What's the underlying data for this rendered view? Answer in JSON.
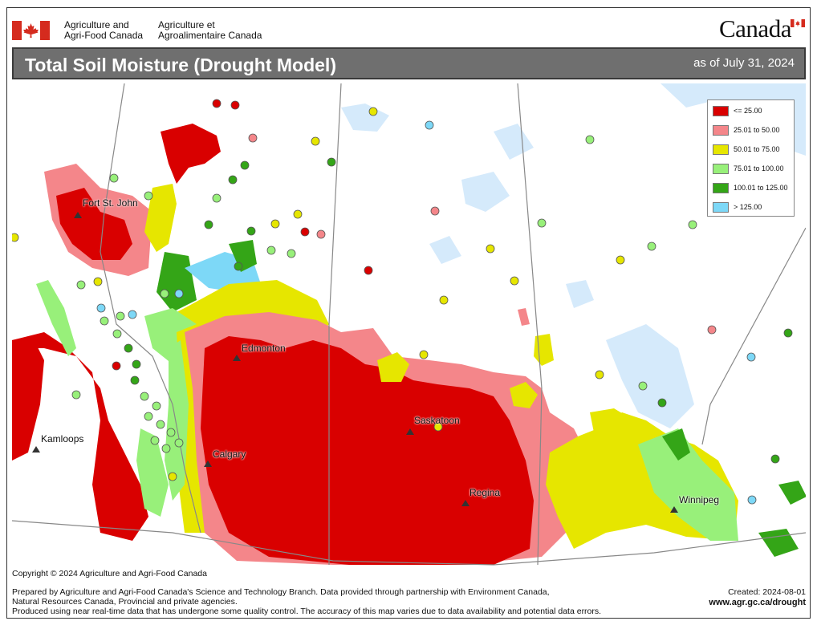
{
  "header": {
    "agency_en_line1": "Agriculture and",
    "agency_en_line2": "Agri-Food Canada",
    "agency_fr_line1": "Agriculture et",
    "agency_fr_line2": "Agroalimentaire Canada",
    "wordmark": "Canada"
  },
  "title_bar": {
    "title": "Total Soil Moisture (Drought Model)",
    "as_of": "as of July 31, 2024"
  },
  "legend": {
    "items": [
      {
        "label": "<= 25.00",
        "color": "#d90000"
      },
      {
        "label": "25.01  to  50.00",
        "color": "#f4868a"
      },
      {
        "label": "50.01  to  75.00",
        "color": "#e6e600"
      },
      {
        "label": "75.01  to  100.00",
        "color": "#98f07a"
      },
      {
        "label": "100.01  to  125.00",
        "color": "#34a517"
      },
      {
        "label": "> 125.00",
        "color": "#7dd8f7"
      }
    ]
  },
  "cities": [
    {
      "name": "Fort St. John"
    },
    {
      "name": "Edmonton"
    },
    {
      "name": "Kamloops"
    },
    {
      "name": "Calgary"
    },
    {
      "name": "Saskatoon"
    },
    {
      "name": "Regina"
    },
    {
      "name": "Winnipeg"
    }
  ],
  "colors": {
    "water": "#cfe7fb",
    "boundary": "#888888",
    "title_bar": "#6f6f6f",
    "flag_red": "#d52b1e"
  },
  "footer": {
    "copyright": "Copyright © 2024 Agriculture and Agri-Food Canada",
    "prepared_line1": "Prepared by Agriculture and Agri-Food Canada's Science and Technology Branch. Data provided through partnership with Environment Canada,",
    "prepared_line2": "Natural Resources Canada, Provincial and private agencies.",
    "disclaimer": "Produced using near real-time data that has undergone some quality control. The accuracy of this map varies due to data availability and potential data errors.",
    "created": "Created: 2024-08-01",
    "url": "www.agr.gc.ca/drought"
  }
}
